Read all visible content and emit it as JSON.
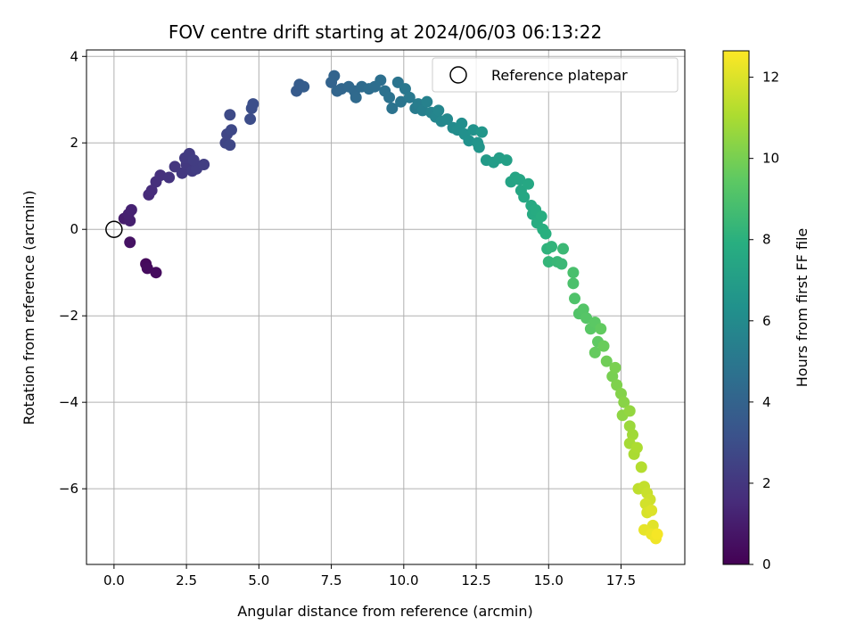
{
  "chart_data": {
    "type": "scatter",
    "title": "FOV centre drift starting at 2024/06/03 06:13:22",
    "xlabel": "Angular distance from reference (arcmin)",
    "ylabel": "Rotation from reference (arcmin)",
    "colorbar_label": "Hours from first FF file",
    "xlim": [
      -0.95,
      19.7
    ],
    "ylim": [
      -7.75,
      4.15
    ],
    "x_ticks": [
      0.0,
      2.5,
      5.0,
      7.5,
      10.0,
      12.5,
      15.0,
      17.5
    ],
    "x_tick_labels": [
      "0.0",
      "2.5",
      "5.0",
      "7.5",
      "10.0",
      "12.5",
      "15.0",
      "17.5"
    ],
    "y_ticks": [
      -6,
      -4,
      -2,
      0,
      2,
      4
    ],
    "y_tick_labels": [
      "−6",
      "−4",
      "−2",
      "0",
      "2",
      "4"
    ],
    "colorbar_range": [
      0,
      12.65
    ],
    "colorbar_ticks": [
      0,
      2,
      4,
      6,
      8,
      10,
      12
    ],
    "colorbar_tick_labels": [
      "0",
      "2",
      "4",
      "6",
      "8",
      "10",
      "12"
    ],
    "colormap": "viridis",
    "grid": true,
    "legend": {
      "position": "top-right",
      "entries": [
        "Reference platepar"
      ]
    },
    "reference_point": {
      "x": 0.0,
      "y": 0.0
    },
    "points": [
      [
        1.1,
        -0.8,
        0.3
      ],
      [
        1.15,
        -0.9,
        0.35
      ],
      [
        1.45,
        -1.0,
        0.4
      ],
      [
        0.55,
        -0.3,
        0.6
      ],
      [
        0.35,
        0.25,
        1.0
      ],
      [
        0.55,
        0.2,
        1.1
      ],
      [
        0.5,
        0.35,
        1.15
      ],
      [
        0.6,
        0.45,
        1.2
      ],
      [
        1.2,
        0.8,
        1.5
      ],
      [
        1.3,
        0.9,
        1.6
      ],
      [
        1.45,
        1.1,
        1.7
      ],
      [
        1.6,
        1.25,
        1.75
      ],
      [
        1.9,
        1.2,
        1.85
      ],
      [
        2.1,
        1.45,
        1.95
      ],
      [
        2.35,
        1.3,
        2.05
      ],
      [
        2.5,
        1.5,
        2.1
      ],
      [
        2.7,
        1.35,
        2.2
      ],
      [
        2.85,
        1.4,
        2.25
      ],
      [
        3.1,
        1.5,
        2.3
      ],
      [
        2.45,
        1.65,
        2.15
      ],
      [
        2.6,
        1.75,
        2.2
      ],
      [
        2.75,
        1.6,
        2.25
      ],
      [
        3.85,
        2.0,
        2.6
      ],
      [
        3.9,
        2.2,
        2.65
      ],
      [
        4.0,
        1.95,
        2.7
      ],
      [
        4.05,
        2.3,
        2.75
      ],
      [
        4.0,
        2.65,
        2.8
      ],
      [
        4.7,
        2.55,
        2.95
      ],
      [
        4.75,
        2.8,
        3.0
      ],
      [
        4.8,
        2.9,
        3.05
      ],
      [
        6.3,
        3.2,
        3.6
      ],
      [
        6.4,
        3.35,
        3.65
      ],
      [
        6.55,
        3.3,
        3.7
      ],
      [
        7.5,
        3.4,
        4.0
      ],
      [
        7.6,
        3.55,
        4.05
      ],
      [
        7.7,
        3.2,
        4.1
      ],
      [
        7.85,
        3.25,
        4.15
      ],
      [
        8.1,
        3.3,
        4.25
      ],
      [
        8.3,
        3.2,
        4.3
      ],
      [
        8.35,
        3.05,
        4.35
      ],
      [
        8.55,
        3.3,
        4.4
      ],
      [
        8.8,
        3.25,
        4.5
      ],
      [
        9.0,
        3.3,
        4.55
      ],
      [
        9.2,
        3.45,
        4.6
      ],
      [
        9.35,
        3.2,
        4.7
      ],
      [
        9.5,
        3.05,
        4.75
      ],
      [
        9.6,
        2.8,
        4.8
      ],
      [
        9.8,
        3.4,
        4.85
      ],
      [
        9.9,
        2.95,
        4.9
      ],
      [
        10.05,
        3.25,
        5.0
      ],
      [
        10.2,
        3.05,
        5.1
      ],
      [
        10.4,
        2.8,
        5.2
      ],
      [
        10.5,
        2.9,
        5.3
      ],
      [
        10.65,
        2.75,
        5.4
      ],
      [
        10.8,
        2.95,
        5.5
      ],
      [
        10.95,
        2.7,
        5.6
      ],
      [
        11.1,
        2.6,
        5.7
      ],
      [
        11.2,
        2.75,
        5.75
      ],
      [
        11.3,
        2.5,
        5.8
      ],
      [
        11.5,
        2.55,
        5.9
      ],
      [
        11.7,
        2.35,
        6.0
      ],
      [
        11.85,
        2.3,
        6.1
      ],
      [
        12.0,
        2.45,
        6.15
      ],
      [
        12.1,
        2.2,
        6.25
      ],
      [
        12.25,
        2.05,
        6.35
      ],
      [
        12.4,
        2.3,
        6.4
      ],
      [
        12.55,
        2.0,
        6.5
      ],
      [
        12.6,
        1.9,
        6.55
      ],
      [
        12.7,
        2.25,
        6.6
      ],
      [
        12.85,
        1.6,
        6.8
      ],
      [
        13.1,
        1.55,
        6.9
      ],
      [
        13.3,
        1.65,
        7.0
      ],
      [
        13.55,
        1.6,
        7.1
      ],
      [
        13.7,
        1.1,
        7.3
      ],
      [
        13.85,
        1.2,
        7.35
      ],
      [
        14.0,
        1.15,
        7.4
      ],
      [
        14.05,
        0.9,
        7.45
      ],
      [
        14.15,
        0.75,
        7.5
      ],
      [
        14.3,
        1.05,
        7.55
      ],
      [
        14.4,
        0.55,
        7.65
      ],
      [
        14.45,
        0.35,
        7.7
      ],
      [
        14.55,
        0.45,
        7.75
      ],
      [
        14.6,
        0.15,
        7.8
      ],
      [
        14.75,
        0.3,
        7.85
      ],
      [
        14.8,
        0.0,
        7.9
      ],
      [
        14.9,
        -0.1,
        7.95
      ],
      [
        14.95,
        -0.45,
        8.1
      ],
      [
        15.1,
        -0.4,
        8.2
      ],
      [
        15.0,
        -0.75,
        8.3
      ],
      [
        15.3,
        -0.75,
        8.4
      ],
      [
        15.45,
        -0.8,
        8.45
      ],
      [
        15.5,
        -0.45,
        8.5
      ],
      [
        15.85,
        -1.0,
        8.9
      ],
      [
        15.85,
        -1.25,
        8.95
      ],
      [
        15.9,
        -1.6,
        9.05
      ],
      [
        16.05,
        -1.95,
        9.15
      ],
      [
        16.2,
        -1.85,
        9.2
      ],
      [
        16.3,
        -2.05,
        9.25
      ],
      [
        16.45,
        -2.3,
        9.35
      ],
      [
        16.6,
        -2.15,
        9.4
      ],
      [
        16.7,
        -2.6,
        9.5
      ],
      [
        16.8,
        -2.3,
        9.55
      ],
      [
        16.6,
        -2.85,
        9.6
      ],
      [
        16.9,
        -2.7,
        9.7
      ],
      [
        17.0,
        -3.05,
        9.85
      ],
      [
        17.2,
        -3.4,
        10.0
      ],
      [
        17.3,
        -3.2,
        10.05
      ],
      [
        17.35,
        -3.6,
        10.15
      ],
      [
        17.5,
        -3.8,
        10.25
      ],
      [
        17.6,
        -4.0,
        10.35
      ],
      [
        17.55,
        -4.3,
        10.45
      ],
      [
        17.8,
        -4.2,
        10.55
      ],
      [
        17.8,
        -4.55,
        10.7
      ],
      [
        17.9,
        -4.75,
        10.8
      ],
      [
        17.8,
        -4.95,
        10.9
      ],
      [
        17.95,
        -5.2,
        11.0
      ],
      [
        18.05,
        -5.05,
        11.05
      ],
      [
        18.2,
        -5.5,
        11.2
      ],
      [
        18.1,
        -6.0,
        11.4
      ],
      [
        18.3,
        -5.95,
        11.5
      ],
      [
        18.4,
        -6.1,
        11.6
      ],
      [
        18.5,
        -6.25,
        11.7
      ],
      [
        18.35,
        -6.35,
        11.8
      ],
      [
        18.4,
        -6.55,
        11.9
      ],
      [
        18.55,
        -6.5,
        12.0
      ],
      [
        18.6,
        -6.85,
        12.1
      ],
      [
        18.3,
        -6.95,
        12.2
      ],
      [
        18.55,
        -7.05,
        12.3
      ],
      [
        18.7,
        -7.15,
        12.4
      ],
      [
        18.75,
        -7.05,
        12.5
      ]
    ]
  }
}
